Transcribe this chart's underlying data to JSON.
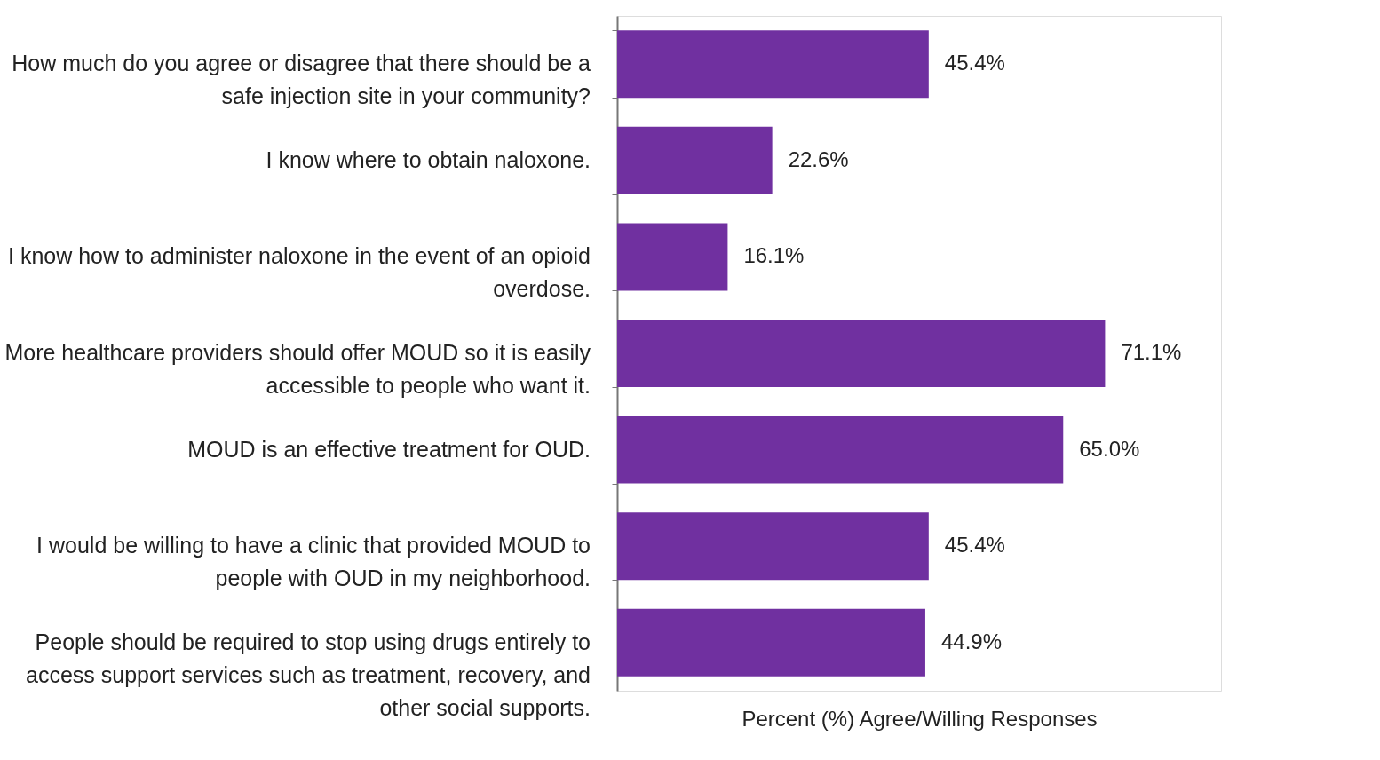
{
  "chart_data": {
    "type": "bar",
    "orientation": "horizontal",
    "xlabel": "Percent (%) Agree/Willing Responses",
    "categories": [
      "How much do you agree or disagree that there should be a safe injection site in your community?",
      "I know where to obtain naloxone.",
      "I know how to administer naloxone in the event of an opioid overdose.",
      "More healthcare providers should offer MOUD so it is easily accessible to people who want it.",
      "MOUD is an effective treatment for OUD.",
      "I would be willing to have a clinic that provided MOUD to people with OUD in my neighborhood.",
      "People should be required to stop using drugs entirely to access support services such as treatment, recovery, and other social supports."
    ],
    "values": [
      45.4,
      22.6,
      16.1,
      71.1,
      65.0,
      45.4,
      44.9
    ],
    "value_labels": [
      "45.4%",
      "22.6%",
      "16.1%",
      "71.1%",
      "65.0%",
      "45.4%",
      "44.9%"
    ],
    "color": "#7030a0",
    "xlim": [
      0,
      88
    ],
    "tick_labels": "y"
  }
}
